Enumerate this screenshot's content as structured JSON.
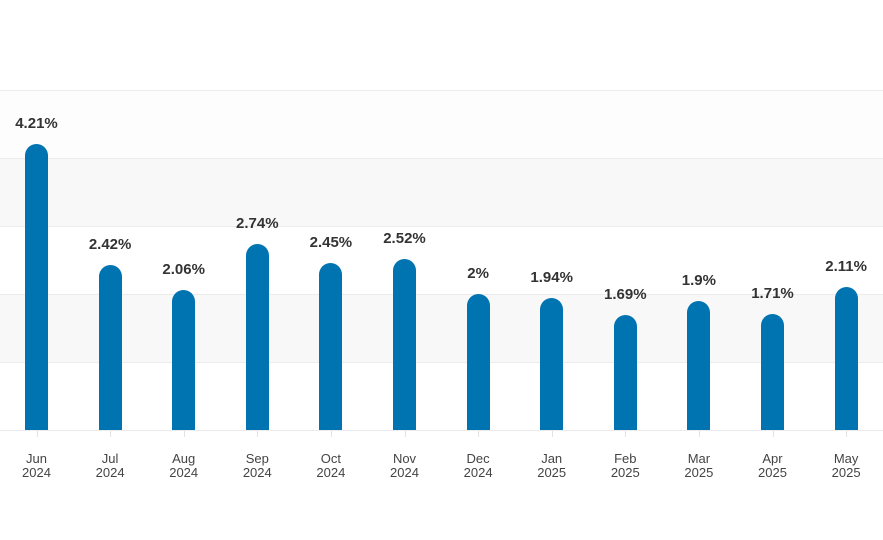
{
  "chart_data": {
    "type": "bar",
    "title": "",
    "xlabel": "",
    "ylabel": "",
    "ylim": [
      0,
      5
    ],
    "y_gridlines": [
      0,
      1,
      2,
      3,
      4,
      5
    ],
    "grid": true,
    "legend": null,
    "categories": [
      {
        "month": "Jun",
        "year": "2024"
      },
      {
        "month": "Jul",
        "year": "2024"
      },
      {
        "month": "Aug",
        "year": "2024"
      },
      {
        "month": "Sep",
        "year": "2024"
      },
      {
        "month": "Oct",
        "year": "2024"
      },
      {
        "month": "Nov",
        "year": "2024"
      },
      {
        "month": "Dec",
        "year": "2024"
      },
      {
        "month": "Jan",
        "year": "2025"
      },
      {
        "month": "Feb",
        "year": "2025"
      },
      {
        "month": "Mar",
        "year": "2025"
      },
      {
        "month": "Apr",
        "year": "2025"
      },
      {
        "month": "May",
        "year": "2025"
      }
    ],
    "values": [
      4.21,
      2.42,
      2.06,
      2.74,
      2.45,
      2.52,
      2.0,
      1.94,
      1.69,
      1.9,
      1.71,
      2.11
    ],
    "value_labels": [
      "4.21%",
      "2.42%",
      "2.06%",
      "2.74%",
      "2.45%",
      "2.52%",
      "2%",
      "1.94%",
      "1.69%",
      "1.9%",
      "1.71%",
      "2.11%"
    ],
    "unit": "%"
  },
  "style": {
    "bar_color": "#0073b1",
    "band_color_alt": "#f8f8f8",
    "band_color": "#fdfdfd"
  }
}
